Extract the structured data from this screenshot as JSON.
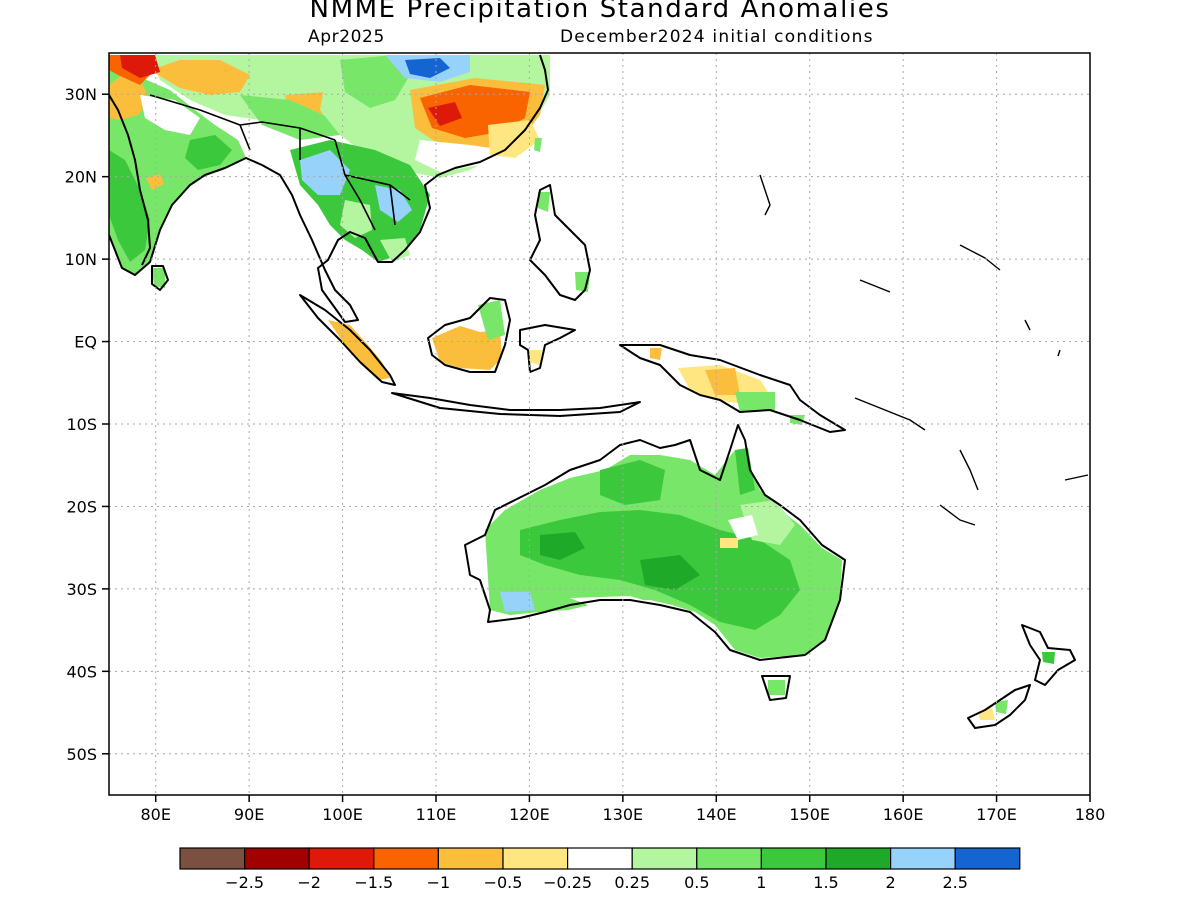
{
  "header": {
    "title": "NMME Precipitation Standard Anomalies",
    "valid_month": "Apr2025",
    "initial_conditions": "December2024 initial conditions"
  },
  "map": {
    "lon_range": [
      75,
      180
    ],
    "lat_range": [
      -55,
      35
    ],
    "lat_ticks": [
      {
        "lat": 30,
        "label": "30N"
      },
      {
        "lat": 20,
        "label": "20N"
      },
      {
        "lat": 10,
        "label": "10N"
      },
      {
        "lat": 0,
        "label": "EQ"
      },
      {
        "lat": -10,
        "label": "10S"
      },
      {
        "lat": -20,
        "label": "20S"
      },
      {
        "lat": -30,
        "label": "30S"
      },
      {
        "lat": -40,
        "label": "40S"
      },
      {
        "lat": -50,
        "label": "50S"
      }
    ],
    "lon_ticks": [
      {
        "lon": 80,
        "label": "80E"
      },
      {
        "lon": 90,
        "label": "90E"
      },
      {
        "lon": 100,
        "label": "100E"
      },
      {
        "lon": 110,
        "label": "110E"
      },
      {
        "lon": 120,
        "label": "120E"
      },
      {
        "lon": 130,
        "label": "130E"
      },
      {
        "lon": 140,
        "label": "140E"
      },
      {
        "lon": 150,
        "label": "150E"
      },
      {
        "lon": 160,
        "label": "160E"
      },
      {
        "lon": 170,
        "label": "170E"
      },
      {
        "lon": 180,
        "label": "180"
      }
    ],
    "gridlines": "dotted"
  },
  "legend": {
    "colors": [
      "#7a5040",
      "#a00000",
      "#dd1a0a",
      "#fa6400",
      "#fbbe3c",
      "#ffe680",
      "#ffffff",
      "#b4f5a0",
      "#78e669",
      "#3cc83c",
      "#1eaa28",
      "#96d2fa",
      "#1464d2"
    ],
    "labels": [
      "−2.5",
      "−2",
      "−1.5",
      "−1",
      "−0.5",
      "−0.25",
      "0.25",
      "0.5",
      "1",
      "1.5",
      "2",
      "2.5"
    ]
  }
}
